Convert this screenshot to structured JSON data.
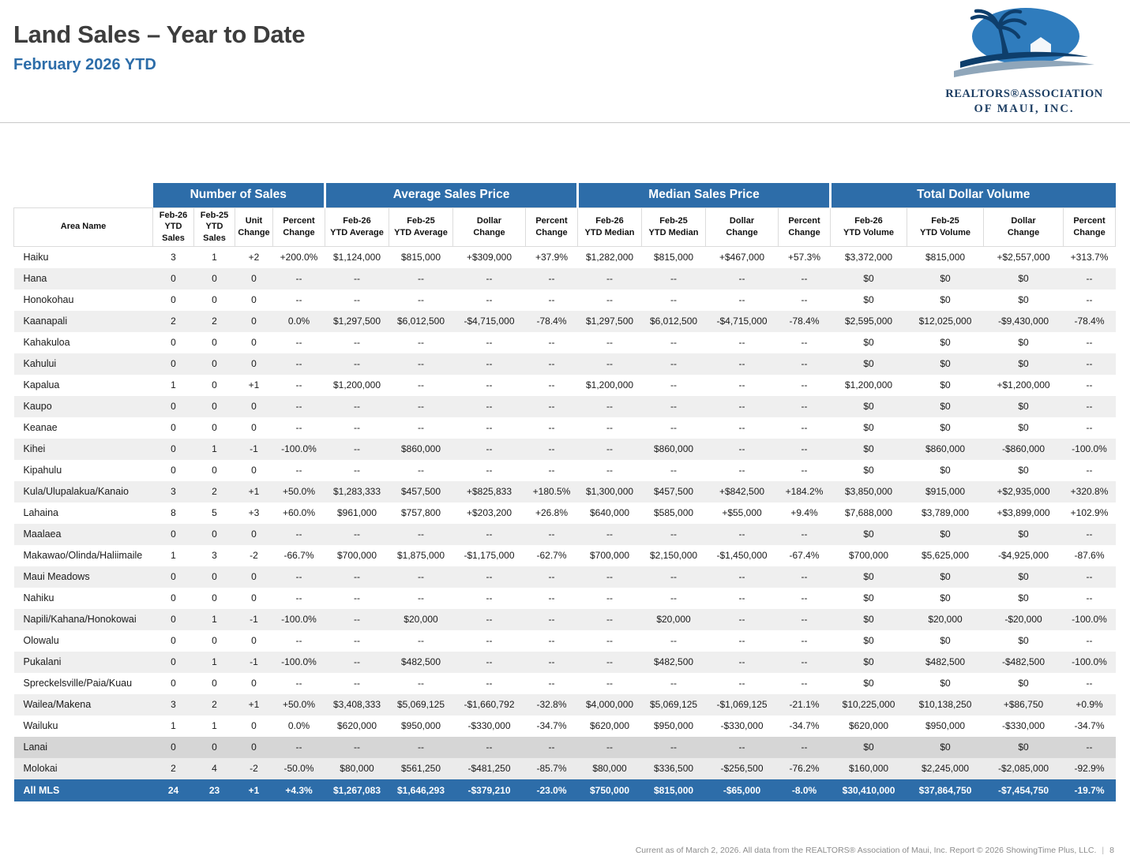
{
  "header": {
    "title": "Land Sales – Year to Date",
    "subtitle": "February 2026 YTD",
    "logo": {
      "org_line1": "REALTORS®ASSOCIATION",
      "org_line2": "OF MAUI, INC."
    }
  },
  "colors": {
    "accent": "#2d6da9",
    "title": "#3d3d3d",
    "stripe": "#efefef",
    "island_dark": "#d6d6d6",
    "island_light": "#ebebeb",
    "footer": "#8c8c8c"
  },
  "table": {
    "area_col_header": "Area Name",
    "groups": [
      {
        "label": "Number of Sales",
        "columns": [
          "Feb-26\nYTD\nSales",
          "Feb-25\nYTD\nSales",
          "Unit\nChange",
          "Percent\nChange"
        ]
      },
      {
        "label": "Average Sales Price",
        "columns": [
          "Feb-26\nYTD Average",
          "Feb-25\nYTD Average",
          "Dollar\nChange",
          "Percent\nChange"
        ]
      },
      {
        "label": "Median Sales Price",
        "columns": [
          "Feb-26\nYTD Median",
          "Feb-25\nYTD Median",
          "Dollar\nChange",
          "Percent\nChange"
        ]
      },
      {
        "label": "Total Dollar Volume",
        "columns": [
          "Feb-26\nYTD Volume",
          "Feb-25\nYTD Volume",
          "Dollar\nChange",
          "Percent\nChange"
        ]
      }
    ],
    "rows": [
      {
        "area": "Haiku",
        "variant": null,
        "values": [
          "3",
          "1",
          "+2",
          "+200.0%",
          "$1,124,000",
          "$815,000",
          "+$309,000",
          "+37.9%",
          "$1,282,000",
          "$815,000",
          "+$467,000",
          "+57.3%",
          "$3,372,000",
          "$815,000",
          "+$2,557,000",
          "+313.7%"
        ]
      },
      {
        "area": "Hana",
        "variant": null,
        "values": [
          "0",
          "0",
          "0",
          "--",
          "--",
          "--",
          "--",
          "--",
          "--",
          "--",
          "--",
          "--",
          "$0",
          "$0",
          "$0",
          "--"
        ]
      },
      {
        "area": "Honokohau",
        "variant": null,
        "values": [
          "0",
          "0",
          "0",
          "--",
          "--",
          "--",
          "--",
          "--",
          "--",
          "--",
          "--",
          "--",
          "$0",
          "$0",
          "$0",
          "--"
        ]
      },
      {
        "area": "Kaanapali",
        "variant": null,
        "values": [
          "2",
          "2",
          "0",
          "0.0%",
          "$1,297,500",
          "$6,012,500",
          "-$4,715,000",
          "-78.4%",
          "$1,297,500",
          "$6,012,500",
          "-$4,715,000",
          "-78.4%",
          "$2,595,000",
          "$12,025,000",
          "-$9,430,000",
          "-78.4%"
        ]
      },
      {
        "area": "Kahakuloa",
        "variant": null,
        "values": [
          "0",
          "0",
          "0",
          "--",
          "--",
          "--",
          "--",
          "--",
          "--",
          "--",
          "--",
          "--",
          "$0",
          "$0",
          "$0",
          "--"
        ]
      },
      {
        "area": "Kahului",
        "variant": null,
        "values": [
          "0",
          "0",
          "0",
          "--",
          "--",
          "--",
          "--",
          "--",
          "--",
          "--",
          "--",
          "--",
          "$0",
          "$0",
          "$0",
          "--"
        ]
      },
      {
        "area": "Kapalua",
        "variant": null,
        "values": [
          "1",
          "0",
          "+1",
          "--",
          "$1,200,000",
          "--",
          "--",
          "--",
          "$1,200,000",
          "--",
          "--",
          "--",
          "$1,200,000",
          "$0",
          "+$1,200,000",
          "--"
        ]
      },
      {
        "area": "Kaupo",
        "variant": null,
        "values": [
          "0",
          "0",
          "0",
          "--",
          "--",
          "--",
          "--",
          "--",
          "--",
          "--",
          "--",
          "--",
          "$0",
          "$0",
          "$0",
          "--"
        ]
      },
      {
        "area": "Keanae",
        "variant": null,
        "values": [
          "0",
          "0",
          "0",
          "--",
          "--",
          "--",
          "--",
          "--",
          "--",
          "--",
          "--",
          "--",
          "$0",
          "$0",
          "$0",
          "--"
        ]
      },
      {
        "area": "Kihei",
        "variant": null,
        "values": [
          "0",
          "1",
          "-1",
          "-100.0%",
          "--",
          "$860,000",
          "--",
          "--",
          "--",
          "$860,000",
          "--",
          "--",
          "$0",
          "$860,000",
          "-$860,000",
          "-100.0%"
        ]
      },
      {
        "area": "Kipahulu",
        "variant": null,
        "values": [
          "0",
          "0",
          "0",
          "--",
          "--",
          "--",
          "--",
          "--",
          "--",
          "--",
          "--",
          "--",
          "$0",
          "$0",
          "$0",
          "--"
        ]
      },
      {
        "area": "Kula/Ulupalakua/Kanaio",
        "variant": null,
        "values": [
          "3",
          "2",
          "+1",
          "+50.0%",
          "$1,283,333",
          "$457,500",
          "+$825,833",
          "+180.5%",
          "$1,300,000",
          "$457,500",
          "+$842,500",
          "+184.2%",
          "$3,850,000",
          "$915,000",
          "+$2,935,000",
          "+320.8%"
        ]
      },
      {
        "area": "Lahaina",
        "variant": null,
        "values": [
          "8",
          "5",
          "+3",
          "+60.0%",
          "$961,000",
          "$757,800",
          "+$203,200",
          "+26.8%",
          "$640,000",
          "$585,000",
          "+$55,000",
          "+9.4%",
          "$7,688,000",
          "$3,789,000",
          "+$3,899,000",
          "+102.9%"
        ]
      },
      {
        "area": "Maalaea",
        "variant": null,
        "values": [
          "0",
          "0",
          "0",
          "--",
          "--",
          "--",
          "--",
          "--",
          "--",
          "--",
          "--",
          "--",
          "$0",
          "$0",
          "$0",
          "--"
        ]
      },
      {
        "area": "Makawao/Olinda/Haliimaile",
        "variant": null,
        "values": [
          "1",
          "3",
          "-2",
          "-66.7%",
          "$700,000",
          "$1,875,000",
          "-$1,175,000",
          "-62.7%",
          "$700,000",
          "$2,150,000",
          "-$1,450,000",
          "-67.4%",
          "$700,000",
          "$5,625,000",
          "-$4,925,000",
          "-87.6%"
        ]
      },
      {
        "area": "Maui Meadows",
        "variant": null,
        "values": [
          "0",
          "0",
          "0",
          "--",
          "--",
          "--",
          "--",
          "--",
          "--",
          "--",
          "--",
          "--",
          "$0",
          "$0",
          "$0",
          "--"
        ]
      },
      {
        "area": "Nahiku",
        "variant": null,
        "values": [
          "0",
          "0",
          "0",
          "--",
          "--",
          "--",
          "--",
          "--",
          "--",
          "--",
          "--",
          "--",
          "$0",
          "$0",
          "$0",
          "--"
        ]
      },
      {
        "area": "Napili/Kahana/Honokowai",
        "variant": null,
        "values": [
          "0",
          "1",
          "-1",
          "-100.0%",
          "--",
          "$20,000",
          "--",
          "--",
          "--",
          "$20,000",
          "--",
          "--",
          "$0",
          "$20,000",
          "-$20,000",
          "-100.0%"
        ]
      },
      {
        "area": "Olowalu",
        "variant": null,
        "values": [
          "0",
          "0",
          "0",
          "--",
          "--",
          "--",
          "--",
          "--",
          "--",
          "--",
          "--",
          "--",
          "$0",
          "$0",
          "$0",
          "--"
        ]
      },
      {
        "area": "Pukalani",
        "variant": null,
        "values": [
          "0",
          "1",
          "-1",
          "-100.0%",
          "--",
          "$482,500",
          "--",
          "--",
          "--",
          "$482,500",
          "--",
          "--",
          "$0",
          "$482,500",
          "-$482,500",
          "-100.0%"
        ]
      },
      {
        "area": "Spreckelsville/Paia/Kuau",
        "variant": null,
        "values": [
          "0",
          "0",
          "0",
          "--",
          "--",
          "--",
          "--",
          "--",
          "--",
          "--",
          "--",
          "--",
          "$0",
          "$0",
          "$0",
          "--"
        ]
      },
      {
        "area": "Wailea/Makena",
        "variant": null,
        "values": [
          "3",
          "2",
          "+1",
          "+50.0%",
          "$3,408,333",
          "$5,069,125",
          "-$1,660,792",
          "-32.8%",
          "$4,000,000",
          "$5,069,125",
          "-$1,069,125",
          "-21.1%",
          "$10,225,000",
          "$10,138,250",
          "+$86,750",
          "+0.9%"
        ]
      },
      {
        "area": "Wailuku",
        "variant": null,
        "values": [
          "1",
          "1",
          "0",
          "0.0%",
          "$620,000",
          "$950,000",
          "-$330,000",
          "-34.7%",
          "$620,000",
          "$950,000",
          "-$330,000",
          "-34.7%",
          "$620,000",
          "$950,000",
          "-$330,000",
          "-34.7%"
        ]
      },
      {
        "area": "Lanai",
        "variant": "island-dark",
        "values": [
          "0",
          "0",
          "0",
          "--",
          "--",
          "--",
          "--",
          "--",
          "--",
          "--",
          "--",
          "--",
          "$0",
          "$0",
          "$0",
          "--"
        ]
      },
      {
        "area": "Molokai",
        "variant": "island-light",
        "values": [
          "2",
          "4",
          "-2",
          "-50.0%",
          "$80,000",
          "$561,250",
          "-$481,250",
          "-85.7%",
          "$80,000",
          "$336,500",
          "-$256,500",
          "-76.2%",
          "$160,000",
          "$2,245,000",
          "-$2,085,000",
          "-92.9%"
        ]
      },
      {
        "area": "All MLS",
        "variant": "total",
        "values": [
          "24",
          "23",
          "+1",
          "+4.3%",
          "$1,267,083",
          "$1,646,293",
          "-$379,210",
          "-23.0%",
          "$750,000",
          "$815,000",
          "-$65,000",
          "-8.0%",
          "$30,410,000",
          "$37,864,750",
          "-$7,454,750",
          "-19.7%"
        ]
      }
    ]
  },
  "footer": {
    "text": "Current as of March 2, 2026. All data from the REALTORS® Association of Maui, Inc. Report © 2026 ShowingTime Plus, LLC.",
    "separator": "|",
    "page": "8"
  }
}
